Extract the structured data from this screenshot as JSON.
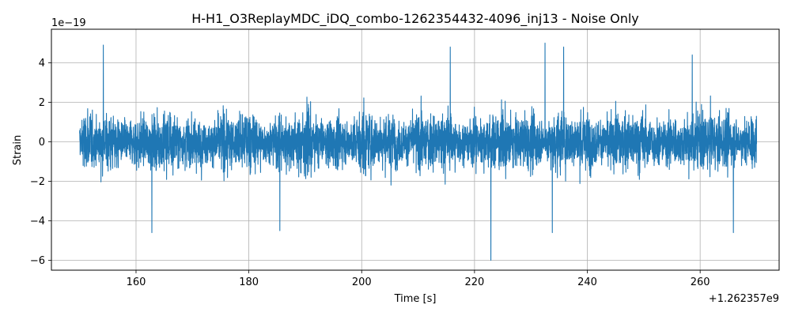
{
  "chart_data": {
    "type": "line",
    "title": "H-H1_O3ReplayMDC_iDQ_combo-1262354432-4096_inj13 - Noise Only",
    "xlabel": "Time [s]",
    "ylabel": "Strain",
    "x_offset_label": "+1.262357e9",
    "y_scale_label": "1e−19",
    "xlim": [
      145.0,
      274.0
    ],
    "ylim": [
      -6.5,
      5.7
    ],
    "x_range": [
      150.0,
      270.0
    ],
    "x_ticks": [
      160,
      180,
      200,
      220,
      240,
      260
    ],
    "x_tick_labels": [
      "160",
      "180",
      "200",
      "220",
      "240",
      "260"
    ],
    "y_ticks": [
      -6,
      -4,
      -2,
      0,
      2,
      4
    ],
    "y_tick_labels": [
      "−6",
      "−4",
      "−2",
      "0",
      "2",
      "4"
    ],
    "grid": true,
    "series": [
      {
        "color": "#1f77b4",
        "base_amplitude": 1.8,
        "spikes": [
          {
            "x": 154.2,
            "y": 4.9
          },
          {
            "x": 162.8,
            "y": -4.6
          },
          {
            "x": 185.5,
            "y": -4.5
          },
          {
            "x": 215.7,
            "y": 4.8
          },
          {
            "x": 222.9,
            "y": -6.0
          },
          {
            "x": 232.5,
            "y": 5.0
          },
          {
            "x": 235.8,
            "y": 4.8
          },
          {
            "x": 233.8,
            "y": -4.6
          },
          {
            "x": 258.6,
            "y": 4.4
          },
          {
            "x": 265.9,
            "y": -4.6
          }
        ]
      }
    ]
  }
}
